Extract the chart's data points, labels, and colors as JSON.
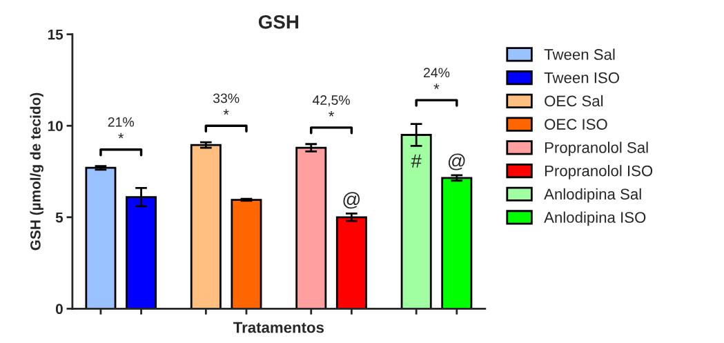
{
  "chart_data": {
    "type": "bar",
    "title": "GSH",
    "xlabel": "Tratamentos",
    "ylabel": "GSH (µmol/g de tecido)",
    "categories": [
      null,
      null,
      null,
      null,
      null,
      null,
      null,
      null
    ],
    "series": [
      {
        "name": "Tween Sal",
        "color": "#99c2ff",
        "values": [
          7.7,
          null,
          null,
          null,
          null,
          null,
          null,
          null
        ],
        "errors": [
          0.1,
          null,
          null,
          null,
          null,
          null,
          null,
          null
        ]
      },
      {
        "name": "Tween ISO",
        "color": "#0000ff",
        "values": [
          null,
          6.1,
          null,
          null,
          null,
          null,
          null,
          null
        ],
        "errors": [
          null,
          0.5,
          null,
          null,
          null,
          null,
          null,
          null
        ]
      },
      {
        "name": "OEC Sal",
        "color": "#ffbf80",
        "values": [
          null,
          null,
          8.95,
          null,
          null,
          null,
          null,
          null
        ],
        "errors": [
          null,
          null,
          0.15,
          null,
          null,
          null,
          null,
          null
        ]
      },
      {
        "name": "OEC ISO",
        "color": "#ff6600",
        "values": [
          null,
          null,
          null,
          5.95,
          null,
          null,
          null,
          null
        ],
        "errors": [
          null,
          null,
          null,
          0.05,
          null,
          null,
          null,
          null
        ]
      },
      {
        "name": "Propranolol Sal",
        "color": "#ff9f9f",
        "values": [
          null,
          null,
          null,
          null,
          8.8,
          null,
          null,
          null
        ],
        "errors": [
          null,
          null,
          null,
          null,
          0.2,
          null,
          null,
          null
        ]
      },
      {
        "name": "Propranolol ISO",
        "color": "#ff0000",
        "values": [
          null,
          null,
          null,
          null,
          null,
          5.0,
          null,
          null
        ],
        "errors": [
          null,
          null,
          null,
          null,
          null,
          0.2,
          null,
          null
        ]
      },
      {
        "name": "Anlodipina Sal",
        "color": "#a0ffa0",
        "values": [
          null,
          null,
          null,
          null,
          null,
          null,
          9.5,
          null
        ],
        "errors": [
          null,
          null,
          null,
          null,
          null,
          null,
          0.6,
          null
        ]
      },
      {
        "name": "Anlodipina ISO",
        "color": "#00ff00",
        "values": [
          null,
          null,
          null,
          null,
          null,
          null,
          null,
          7.15
        ],
        "errors": [
          null,
          null,
          null,
          null,
          null,
          null,
          null,
          0.15
        ]
      }
    ],
    "ylim": [
      0,
      15
    ],
    "yticks": [
      0,
      5,
      10,
      15
    ],
    "grid": false,
    "legend": "right",
    "annotations": [
      "21%",
      "*",
      "33%",
      "*",
      "42,5%",
      "*",
      "24%",
      "*",
      "#",
      "@",
      "@"
    ]
  }
}
